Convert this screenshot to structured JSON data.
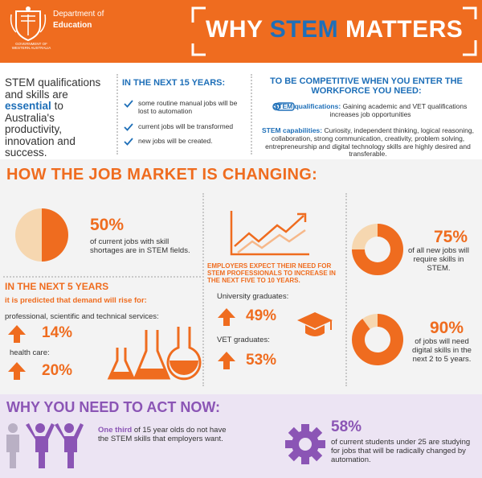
{
  "header": {
    "org_line1": "Department of",
    "org_line2": "Education",
    "org_sub": "GOVERNMENT OF WESTERN AUSTRALIA",
    "title_pre": "WHY",
    "title_highlight": "STEM",
    "title_post": "MATTERS"
  },
  "intro": {
    "pre": "STEM qualifications and skills are",
    "highlight": "essential",
    "post": "to Australia's productivity, innovation and success."
  },
  "next15": {
    "heading": "IN THE NEXT 15 YEARS:",
    "items": [
      "some routine manual jobs will be lost to automation",
      "current jobs will be transformed",
      "new jobs will be created."
    ]
  },
  "competitive": {
    "heading": "TO BE COMPETITIVE WHEN YOU ENTER THE WORKFORCE YOU NEED:",
    "items": [
      {
        "lead": "STEM qualifications:",
        "text": "Gaining academic and VET qualifications increases job opportunities"
      },
      {
        "lead": "STEM capabilities:",
        "text": "Curiosity, independent thinking, logical reasoning, collaboration, strong communication, creativity, problem solving, entrepreneurship and digital technology skills are highly desired and transferable."
      }
    ]
  },
  "job_market": {
    "heading": "HOW THE JOB MARKET IS CHANGING:",
    "shortage": {
      "value": 50,
      "label": "50%",
      "text": "of current jobs with skill shortages are in STEM fields."
    },
    "next5": {
      "heading": "IN THE NEXT 5 YEARS",
      "subheading": "it is predicted that demand will rise for:",
      "items": [
        {
          "name": "professional, scientific and technical services:",
          "label": "14%"
        },
        {
          "name": "health care:",
          "label": "20%"
        }
      ]
    },
    "employers": {
      "heading": "EMPLOYERS EXPECT THEIR NEED FOR STEM PROFESSIONALS TO INCREASE IN THE NEXT FIVE TO 10 YEARS.",
      "items": [
        {
          "name": "University graduates:",
          "label": "49%"
        },
        {
          "name": "VET graduates:",
          "label": "53%"
        }
      ]
    },
    "new_jobs": {
      "value": 75,
      "label": "75%",
      "text": "of all new jobs will require skills in STEM."
    },
    "digital": {
      "value": 90,
      "label": "90%",
      "text": "of jobs will need digital skills in the next 2 to 5 years."
    }
  },
  "act_now": {
    "heading": "WHY YOU NEED TO ACT NOW:",
    "one_third": {
      "lead": "One third",
      "text": "of 15 year olds do not have the STEM skills that employers want."
    },
    "students": {
      "label": "58%",
      "text": "of current students under 25 are studying for jobs that will be radically changed by automation."
    }
  }
}
